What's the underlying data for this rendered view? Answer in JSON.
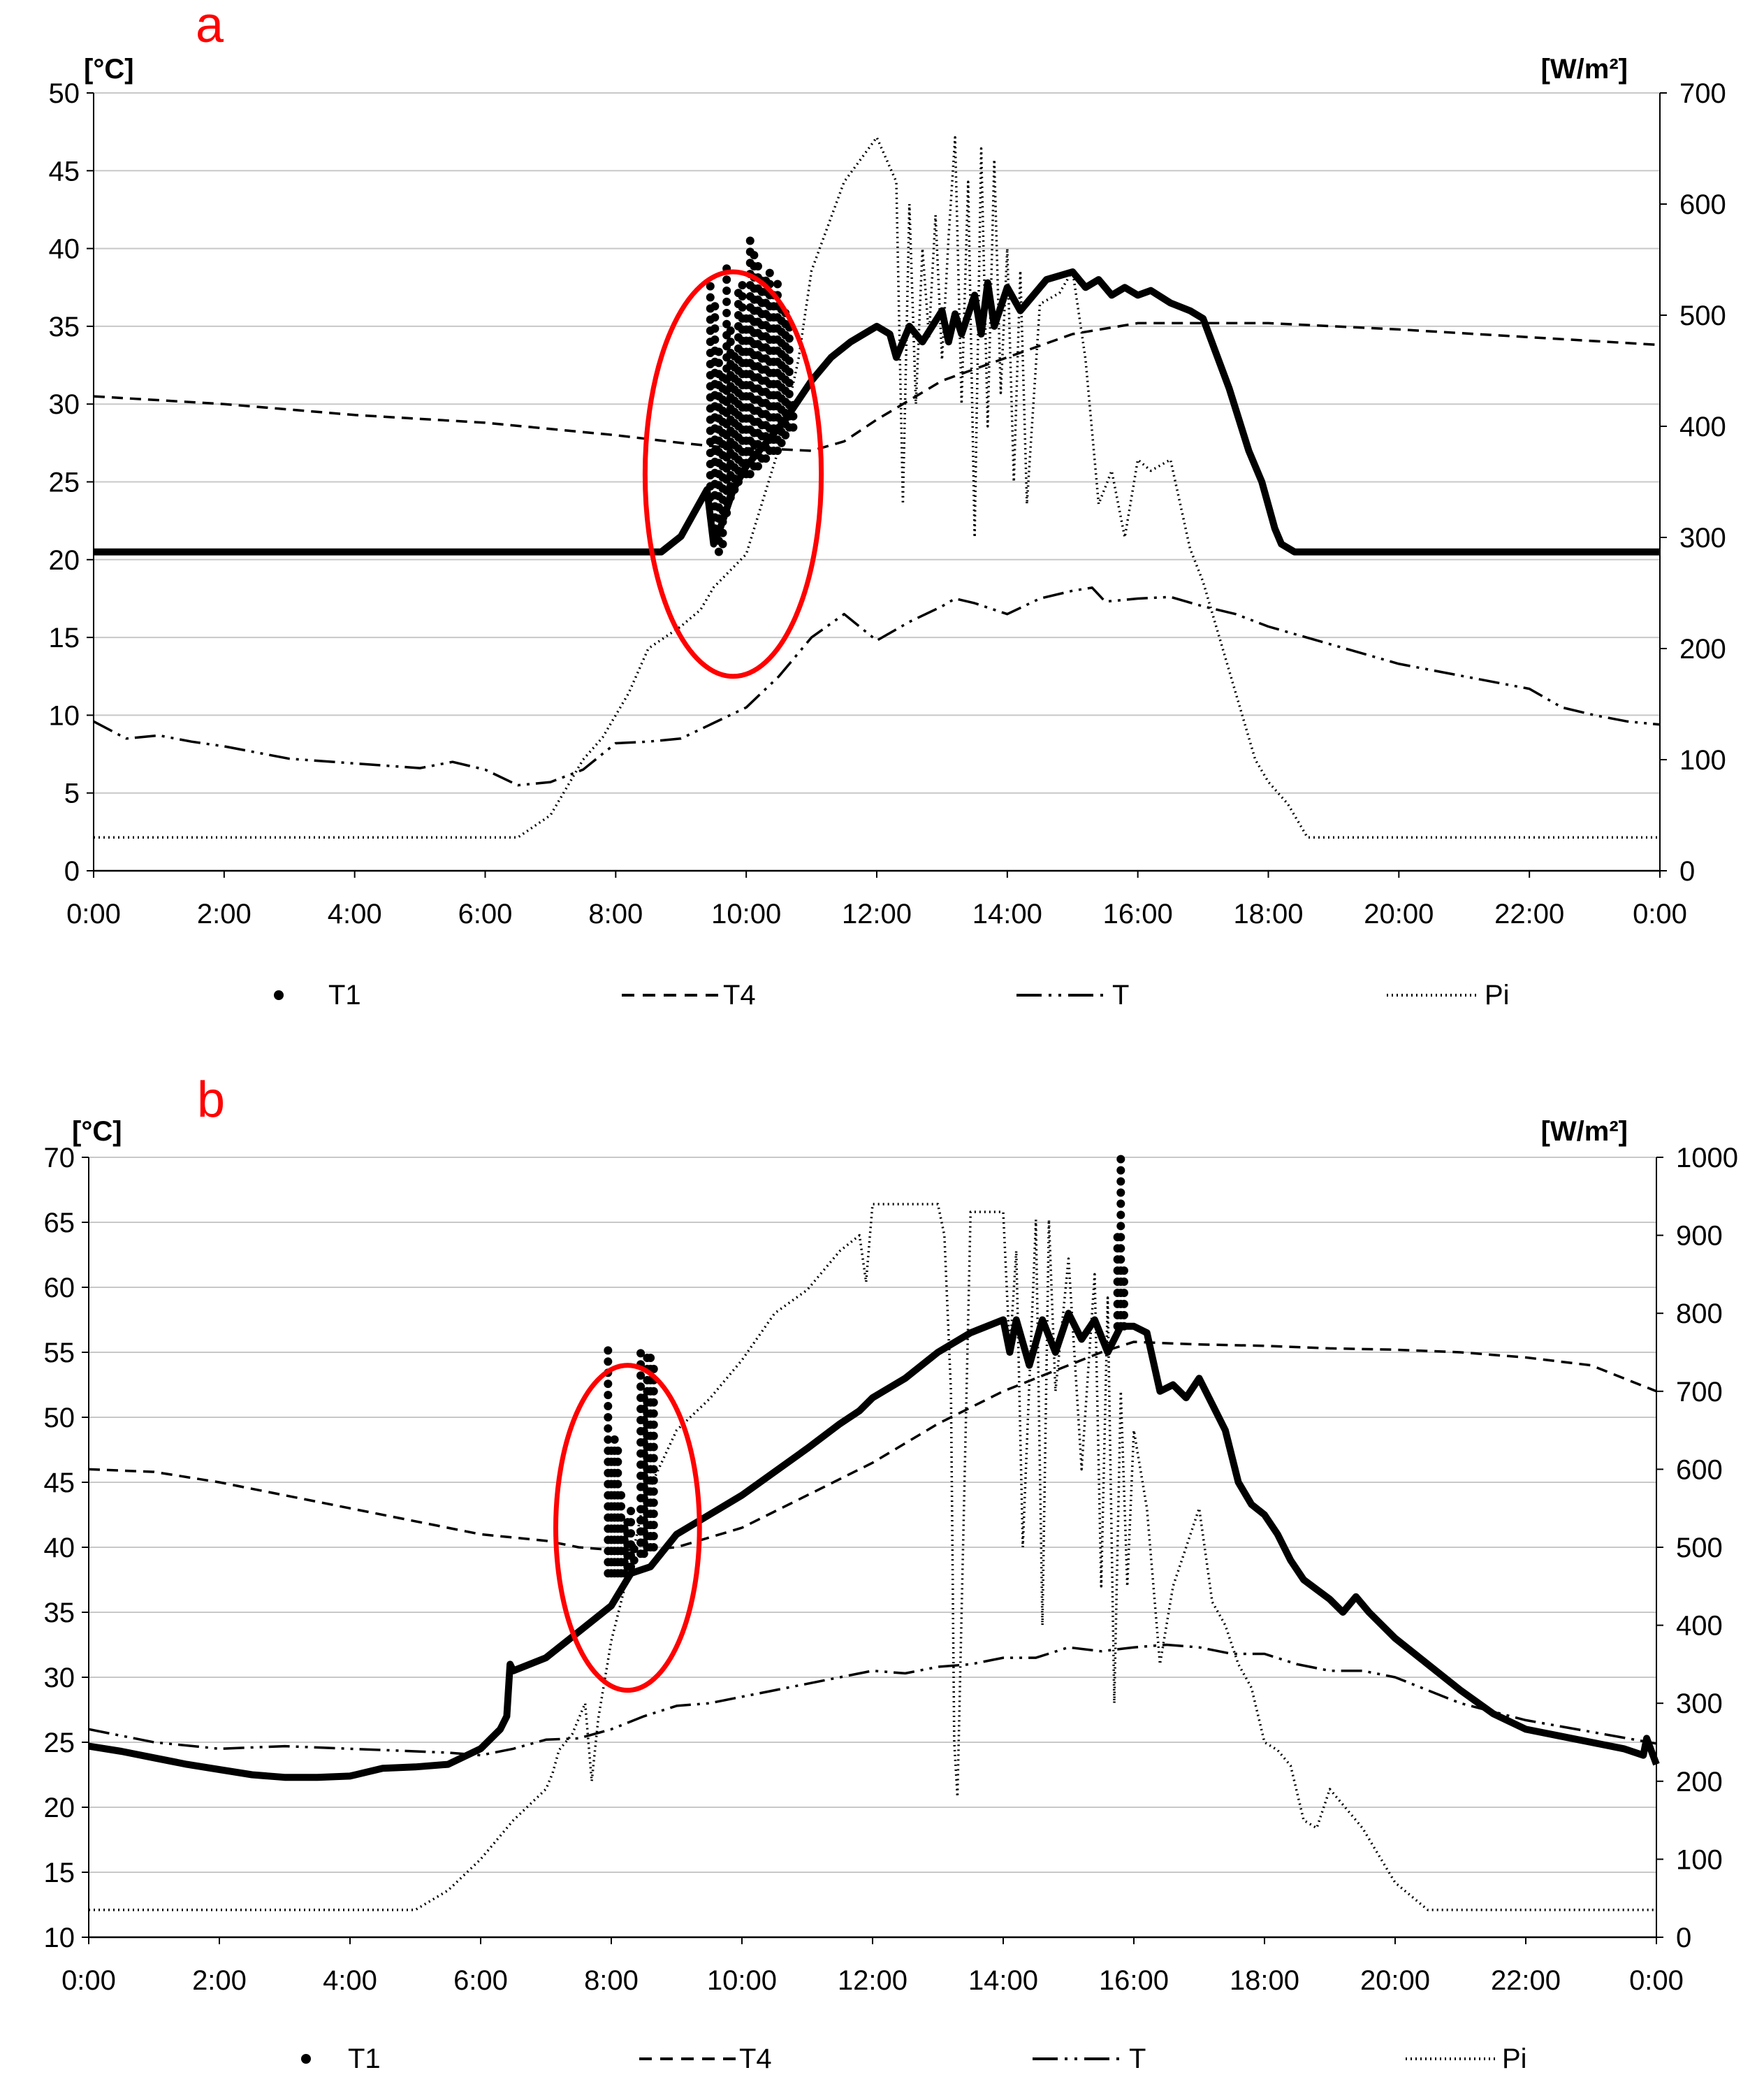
{
  "colors": {
    "axis": "#000000",
    "grid": "#c8c8c8",
    "highlight": "#ff0000",
    "series": "#000000"
  },
  "legend": [
    {
      "key": "T1",
      "label": "T1",
      "style": "dots"
    },
    {
      "key": "T4",
      "label": "T4",
      "style": "dashed"
    },
    {
      "key": "T",
      "label": "T",
      "style": "dash-dot-dot"
    },
    {
      "key": "Pi",
      "label": "Pi",
      "style": "dotted"
    }
  ],
  "chart_data": [
    {
      "panel": "a",
      "type": "line",
      "x_ticks": [
        "0:00",
        "2:00",
        "4:00",
        "6:00",
        "8:00",
        "10:00",
        "12:00",
        "14:00",
        "16:00",
        "18:00",
        "20:00",
        "22:00",
        "0:00"
      ],
      "x_unit": "hours",
      "xlim": [
        0,
        24
      ],
      "y_left": {
        "unit": "[°C]",
        "lim": [
          0,
          50
        ],
        "ticks": [
          0,
          5,
          10,
          15,
          20,
          25,
          30,
          35,
          40,
          45,
          50
        ]
      },
      "y_right": {
        "unit": "[W/m²]",
        "lim": [
          0,
          700
        ],
        "ticks": [
          0,
          100,
          200,
          300,
          400,
          500,
          600,
          700
        ]
      },
      "highlight_ellipse": {
        "x_center": 9.8,
        "y_center": 25.5,
        "x_radius": 1.35,
        "y_radius": 13
      },
      "series": [
        {
          "name": "T4",
          "axis": "left",
          "style": "dashed",
          "x": [
            0,
            2,
            4,
            6,
            8,
            9,
            9.7,
            10.5,
            11,
            11.5,
            12,
            13,
            14,
            15,
            16,
            17,
            18,
            20,
            22,
            24
          ],
          "y": [
            30.5,
            30,
            29.3,
            28.8,
            28,
            27.5,
            27.2,
            27.1,
            27,
            27.6,
            29,
            31.5,
            33,
            34.5,
            35.2,
            35.2,
            35.2,
            34.8,
            34.3,
            33.8
          ]
        },
        {
          "name": "T",
          "axis": "left",
          "style": "dash-dot-dot",
          "x": [
            0,
            0.5,
            1,
            1.5,
            2,
            3,
            4,
            5,
            5.5,
            6,
            6.5,
            7,
            7.5,
            8,
            8.5,
            9,
            9.5,
            10,
            10.5,
            11,
            11.5,
            12,
            12.5,
            13,
            13.2,
            13.5,
            14,
            14.5,
            15,
            15.3,
            15.5,
            16,
            16.5,
            17,
            17.5,
            18,
            19,
            20,
            21,
            22,
            22.5,
            23,
            23.5,
            24
          ],
          "y": [
            9.6,
            8.5,
            8.7,
            8.3,
            8,
            7.2,
            6.9,
            6.6,
            7,
            6.5,
            5.5,
            5.7,
            6.5,
            8.2,
            8.3,
            8.5,
            9.5,
            10.5,
            12.5,
            15,
            16.5,
            14.8,
            16,
            17,
            17.5,
            17.2,
            16.5,
            17.5,
            18,
            18.2,
            17.3,
            17.5,
            17.6,
            17,
            16.5,
            15.7,
            14.5,
            13.3,
            12.5,
            11.7,
            10.5,
            10,
            9.6,
            9.4
          ]
        },
        {
          "name": "Pi",
          "axis": "right",
          "style": "dotted",
          "x": [
            0,
            5.5,
            6.5,
            7,
            7.5,
            7.8,
            8,
            8.2,
            8.5,
            9,
            9.3,
            9.5,
            10,
            10.5,
            10.8,
            11,
            11.5,
            12,
            12.3,
            12.4,
            12.5,
            12.6,
            12.7,
            12.8,
            12.9,
            13,
            13.1,
            13.2,
            13.3,
            13.4,
            13.5,
            13.6,
            13.7,
            13.8,
            13.9,
            14,
            14.1,
            14.2,
            14.3,
            14.5,
            14.8,
            15,
            15.2,
            15.4,
            15.6,
            15.8,
            16,
            16.2,
            16.5,
            16.8,
            17,
            17.5,
            17.8,
            18,
            18.3,
            18.6,
            19,
            24
          ],
          "y": [
            30,
            30,
            30,
            50,
            100,
            120,
            140,
            160,
            200,
            220,
            235,
            255,
            285,
            380,
            460,
            540,
            620,
            660,
            620,
            330,
            600,
            420,
            560,
            480,
            590,
            460,
            570,
            660,
            420,
            620,
            300,
            650,
            400,
            640,
            430,
            560,
            350,
            540,
            330,
            510,
            520,
            540,
            460,
            330,
            360,
            300,
            370,
            360,
            370,
            290,
            260,
            160,
            100,
            80,
            60,
            30,
            30,
            30
          ]
        },
        {
          "name": "T",
          "axis": "left",
          "style": "solid-bold",
          "legend_visible": false,
          "x": [
            0,
            8.7,
            9,
            9.2,
            9.4,
            9.5,
            9.6,
            9.8,
            10,
            10.3,
            10.6,
            11,
            11.3,
            11.6,
            12,
            12.2,
            12.3,
            12.5,
            12.7,
            13,
            13.1,
            13.2,
            13.3,
            13.5,
            13.6,
            13.7,
            13.8,
            14,
            14.2,
            14.4,
            14.6,
            15,
            15.2,
            15.4,
            15.6,
            15.8,
            16,
            16.2,
            16.5,
            16.8,
            17,
            17.4,
            17.7,
            17.9,
            18,
            18.1,
            18.2,
            18.4,
            24
          ],
          "y": [
            20.5,
            20.5,
            21.5,
            23,
            24.5,
            21,
            22,
            24.5,
            26,
            27.5,
            29,
            31.5,
            33,
            34,
            35,
            34.5,
            33,
            35,
            34,
            36,
            34,
            35.8,
            34.5,
            37,
            34.5,
            37.8,
            35,
            37.5,
            36,
            37,
            38,
            38.5,
            37.5,
            38,
            37,
            37.5,
            37,
            37.3,
            36.5,
            36,
            35.5,
            31,
            27,
            25,
            23.5,
            22,
            21,
            20.5,
            20.5
          ]
        },
        {
          "name": "T1",
          "axis": "left",
          "style": "dots",
          "x": [
            9.45,
            9.52,
            9.58,
            9.64,
            9.7,
            9.76,
            9.82,
            9.88,
            9.94,
            10.0,
            10.06,
            10.12,
            10.18,
            10.24,
            10.3,
            10.36,
            10.42,
            10.48,
            10.54,
            10.6,
            10.66,
            10.72
          ],
          "y_min": [
            24,
            22,
            20.5,
            21,
            23,
            24,
            24.5,
            25,
            25.5,
            25.5,
            25.5,
            26,
            26,
            26.5,
            26.5,
            27,
            27,
            27,
            27.5,
            28,
            28.5,
            28.5
          ],
          "y_max": [
            38,
            36.5,
            34,
            32,
            39,
            35,
            33.5,
            37.5,
            38,
            36,
            40.8,
            40,
            39,
            38.5,
            38,
            39,
            37.5,
            38,
            36.5,
            36,
            35,
            30
          ]
        }
      ]
    },
    {
      "panel": "b",
      "type": "line",
      "x_ticks": [
        "0:00",
        "2:00",
        "4:00",
        "6:00",
        "8:00",
        "10:00",
        "12:00",
        "14:00",
        "16:00",
        "18:00",
        "20:00",
        "22:00",
        "0:00"
      ],
      "x_unit": "hours",
      "xlim": [
        0,
        24
      ],
      "y_left": {
        "unit": "[°C]",
        "lim": [
          10,
          70
        ],
        "ticks": [
          10,
          15,
          20,
          25,
          30,
          35,
          40,
          45,
          50,
          55,
          60,
          65,
          70
        ]
      },
      "y_right": {
        "unit": "[W/m²]",
        "lim": [
          0,
          1000
        ],
        "ticks": [
          0,
          100,
          200,
          300,
          400,
          500,
          600,
          700,
          800,
          900,
          1000
        ]
      },
      "highlight_ellipse": {
        "x_center": 8.25,
        "y_center": 41.5,
        "x_radius": 1.1,
        "y_radius": 12.5
      },
      "series": [
        {
          "name": "T4",
          "axis": "left",
          "style": "dashed",
          "x": [
            0,
            1,
            2,
            3,
            4,
            5,
            6,
            7,
            7.5,
            8,
            8.5,
            9,
            10,
            11,
            12,
            13,
            14,
            15,
            15.5,
            16,
            17,
            18,
            19,
            20,
            21,
            22,
            23,
            24
          ],
          "y": [
            46,
            45.8,
            45,
            44,
            43,
            42,
            41,
            40.5,
            40,
            39.8,
            39.8,
            40,
            41.5,
            44,
            46.5,
            49.5,
            52,
            54,
            55,
            55.8,
            55.6,
            55.5,
            55.3,
            55.2,
            55,
            54.6,
            54,
            52
          ]
        },
        {
          "name": "T",
          "axis": "left",
          "style": "dash-dot-dot",
          "x": [
            0,
            1,
            2,
            3,
            4,
            5,
            5.5,
            6,
            6.5,
            7,
            7.5,
            8,
            8.5,
            9,
            9.5,
            10,
            10.5,
            11,
            11.5,
            12,
            12.5,
            13,
            13.5,
            14,
            14.5,
            15,
            15.5,
            16,
            16.5,
            17,
            17.5,
            18,
            18.5,
            19,
            19.5,
            20,
            20.5,
            21,
            22,
            23,
            24
          ],
          "y": [
            26,
            25,
            24.5,
            24.7,
            24.5,
            24.3,
            24.2,
            24,
            24.5,
            25.2,
            25.3,
            26,
            27,
            27.8,
            28,
            28.5,
            29,
            29.5,
            30,
            30.5,
            30.3,
            30.8,
            31,
            31.5,
            31.5,
            32.3,
            32,
            32.3,
            32.5,
            32.3,
            31.8,
            31.8,
            31,
            30.5,
            30.5,
            30,
            29,
            28,
            26.7,
            25.8,
            24.9
          ]
        },
        {
          "name": "Pi",
          "axis": "right",
          "style": "dotted",
          "x": [
            0,
            5,
            5.5,
            6,
            6.5,
            7,
            7.1,
            7.2,
            7.4,
            7.6,
            7.7,
            7.8,
            8,
            8.3,
            8.5,
            9,
            9.5,
            10,
            10.5,
            11,
            11.5,
            11.8,
            11.9,
            12,
            12.5,
            13,
            13.1,
            13.2,
            13.25,
            13.3,
            13.5,
            14,
            14.1,
            14.2,
            14.3,
            14.5,
            14.6,
            14.7,
            14.8,
            15,
            15.2,
            15.4,
            15.5,
            15.6,
            15.7,
            15.8,
            15.9,
            16,
            16.2,
            16.4,
            16.6,
            16.8,
            17,
            17.2,
            17.4,
            17.6,
            17.8,
            18,
            18.2,
            18.4,
            18.6,
            18.8,
            19,
            19.5,
            20,
            20.5,
            24
          ],
          "y": [
            35,
            35,
            60,
            100,
            150,
            190,
            210,
            240,
            260,
            300,
            200,
            280,
            380,
            480,
            560,
            650,
            690,
            740,
            800,
            830,
            880,
            900,
            840,
            940,
            940,
            940,
            900,
            700,
            250,
            180,
            930,
            930,
            750,
            880,
            500,
            920,
            400,
            920,
            700,
            870,
            600,
            850,
            450,
            820,
            300,
            700,
            450,
            650,
            550,
            350,
            450,
            500,
            550,
            430,
            400,
            350,
            320,
            250,
            240,
            220,
            150,
            140,
            190,
            140,
            70,
            35,
            35
          ]
        },
        {
          "name": "T",
          "axis": "left",
          "style": "solid-bold",
          "legend_visible": false,
          "x": [
            0,
            0.5,
            1,
            1.5,
            2,
            2.5,
            3,
            3.5,
            4,
            4.5,
            5,
            5.5,
            6,
            6.3,
            6.4,
            6.45,
            6.5,
            7,
            7.5,
            8,
            8.3,
            8.6,
            9,
            9.5,
            10,
            10.5,
            11,
            11.5,
            11.8,
            12,
            12.5,
            13,
            13.5,
            14,
            14.1,
            14.2,
            14.4,
            14.6,
            14.8,
            15,
            15.2,
            15.4,
            15.6,
            15.8,
            16,
            16.2,
            16.4,
            16.6,
            16.8,
            17,
            17.2,
            17.4,
            17.6,
            17.8,
            18,
            18.2,
            18.4,
            18.6,
            19,
            19.2,
            19.4,
            19.6,
            20,
            20.5,
            21,
            21.5,
            22,
            22.5,
            23,
            23.5,
            23.8,
            23.85,
            24
          ],
          "y": [
            24.7,
            24.3,
            23.8,
            23.3,
            22.9,
            22.5,
            22.3,
            22.3,
            22.4,
            23,
            23.1,
            23.3,
            24.5,
            26,
            27,
            31,
            30.5,
            31.5,
            33.5,
            35.5,
            38,
            38.5,
            41,
            42.5,
            44,
            45.8,
            47.6,
            49.5,
            50.5,
            51.5,
            53,
            55,
            56.5,
            57.5,
            55,
            57.5,
            54,
            57.5,
            55,
            58,
            56,
            57.5,
            55,
            57,
            57,
            56.5,
            52,
            52.5,
            51.5,
            53,
            51,
            49,
            45,
            43.3,
            42.5,
            41,
            39,
            37.5,
            36,
            35,
            36.2,
            35,
            33,
            31,
            29,
            27.2,
            26,
            25.5,
            25,
            24.5,
            24,
            25.3,
            23.3
          ]
        },
        {
          "name": "T1",
          "axis": "left",
          "style": "dots",
          "x": [
            7.95,
            8.0,
            8.05,
            8.1,
            8.15,
            8.2,
            8.25,
            8.3,
            8.35,
            8.45,
            8.5,
            8.55,
            8.6,
            8.65,
            15.75,
            15.8,
            15.85
          ],
          "y_min": [
            38,
            38,
            38,
            38,
            38,
            38,
            38.5,
            38.5,
            39,
            39.5,
            39.5,
            40,
            40,
            40,
            57,
            57,
            57
          ],
          "y_max": [
            55.7,
            48,
            49,
            47.5,
            44,
            42,
            42.5,
            43,
            40.5,
            55,
            52,
            54.8,
            55,
            54.5,
            64,
            70,
            62
          ]
        }
      ]
    }
  ]
}
